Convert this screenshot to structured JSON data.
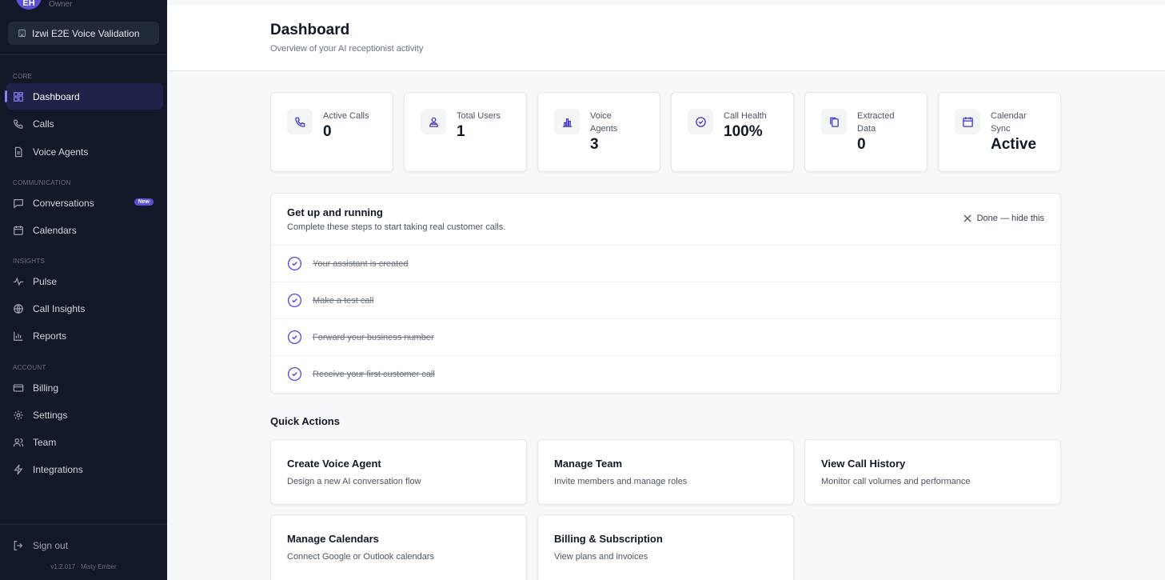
{
  "user": {
    "initials": "EH",
    "role": "Owner"
  },
  "workspace": {
    "name": "Izwi E2E Voice Validation"
  },
  "sidebar": {
    "sections": {
      "core": "CORE",
      "communication": "COMMUNICATION",
      "insights": "INSIGHTS",
      "account": "ACCOUNT"
    },
    "items": {
      "dashboard": "Dashboard",
      "calls": "Calls",
      "voice_agents": "Voice Agents",
      "conversations": "Conversations",
      "conversations_badge": "New",
      "calendars": "Calendars",
      "pulse": "Pulse",
      "call_insights": "Call Insights",
      "reports": "Reports",
      "billing": "Billing",
      "settings": "Settings",
      "team": "Team",
      "integrations": "Integrations"
    },
    "sign_out": "Sign out",
    "version": "v1.2.017 · Misty Ember"
  },
  "header": {
    "title": "Dashboard",
    "subtitle": "Overview of your AI receptionist activity"
  },
  "stats": [
    {
      "label": "Active Calls",
      "value": "0",
      "icon": "phone-icon"
    },
    {
      "label": "Total Users",
      "value": "1",
      "icon": "users-icon"
    },
    {
      "label": "Voice Agents",
      "value": "3",
      "icon": "bar-chart-icon"
    },
    {
      "label": "Call Health",
      "value": "100%",
      "icon": "check-circle-icon"
    },
    {
      "label": "Extracted Data",
      "value": "0",
      "icon": "copy-icon"
    },
    {
      "label": "Calendar Sync",
      "value": "Active",
      "icon": "calendar-icon"
    }
  ],
  "onboarding": {
    "title": "Get up and running",
    "subtitle": "Complete these steps to start taking real customer calls.",
    "hide_label": "Done — hide this",
    "steps": [
      "Your assistant is created",
      "Make a test call",
      "Forward your business number",
      "Receive your first customer call"
    ]
  },
  "quick_actions": {
    "title": "Quick Actions",
    "cards": [
      {
        "title": "Create Voice Agent",
        "desc": "Design a new AI conversation flow"
      },
      {
        "title": "Manage Team",
        "desc": "Invite members and manage roles"
      },
      {
        "title": "View Call History",
        "desc": "Monitor call volumes and performance"
      },
      {
        "title": "Manage Calendars",
        "desc": "Connect Google or Outlook calendars"
      },
      {
        "title": "Billing & Subscription",
        "desc": "View plans and invoices"
      }
    ]
  },
  "colors": {
    "sidebar_bg": "#111827",
    "accent": "#5b50d6",
    "active_bg": "#1e2248"
  }
}
